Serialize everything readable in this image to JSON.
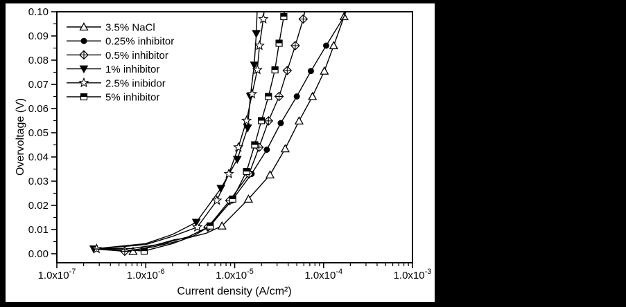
{
  "colors": {
    "page_background": "#000000",
    "plot_background": "#ffffff",
    "foreground": "#000000"
  },
  "chart_data": {
    "type": "line",
    "title": "",
    "xlabel": "Current density (A/cm²)",
    "ylabel": "Overvoltage (V)",
    "x_scale": "log",
    "x_range": [
      1e-07,
      0.001
    ],
    "y_range": [
      0.0,
      0.1
    ],
    "grid": false,
    "legend_position": "top-left",
    "x_tick_prefix": "1.0x10",
    "x_tick_exponents": [
      -7,
      -6,
      -5,
      -4,
      -3
    ],
    "y_tick_labels": [
      "0.00",
      "0.01",
      "0.02",
      "0.03",
      "0.04",
      "0.05",
      "0.06",
      "0.07",
      "0.08",
      "0.09",
      "0.10"
    ],
    "series": [
      {
        "name": "3.5% NaCl",
        "marker": "triangle-open",
        "line": [
          [
            2.6e-07,
            0.002
          ],
          [
            5e-07,
            0.0013
          ],
          [
            7.2e-07,
            0.001
          ],
          [
            1.4e-06,
            0.004
          ],
          [
            2.1e-06,
            0.0058
          ],
          [
            3e-06,
            0.0066
          ],
          [
            4.8e-06,
            0.0085
          ],
          [
            7.2e-06,
            0.0115
          ],
          [
            1.43e-05,
            0.0226
          ],
          [
            2.5e-05,
            0.0326
          ],
          [
            3.7e-05,
            0.0434
          ],
          [
            5.3e-05,
            0.0549
          ],
          [
            7.5e-05,
            0.065
          ],
          [
            0.000102,
            0.0755
          ],
          [
            0.00013,
            0.086
          ],
          [
            0.00017,
            0.098
          ],
          [
            0.000178,
            0.1
          ]
        ],
        "markers": [
          [
            7.2e-07,
            0.001
          ],
          [
            7.2e-06,
            0.0115
          ],
          [
            1.43e-05,
            0.0226
          ],
          [
            2.5e-05,
            0.0326
          ],
          [
            3.7e-05,
            0.0434
          ],
          [
            5.3e-05,
            0.0549
          ],
          [
            7.5e-05,
            0.065
          ],
          [
            0.000102,
            0.0755
          ],
          [
            0.00013,
            0.086
          ],
          [
            0.00017,
            0.098
          ]
        ]
      },
      {
        "name": "0.25% inhibitor",
        "marker": "circle-filled",
        "line": [
          [
            2.6e-07,
            0.002
          ],
          [
            7e-07,
            0.0022
          ],
          [
            1.5e-06,
            0.004
          ],
          [
            3e-06,
            0.007
          ],
          [
            5.05e-06,
            0.011
          ],
          [
            9.3e-06,
            0.022
          ],
          [
            1.55e-05,
            0.033
          ],
          [
            2.3e-05,
            0.043
          ],
          [
            3.3e-05,
            0.054
          ],
          [
            5e-05,
            0.065
          ],
          [
            7.2e-05,
            0.0755
          ],
          [
            0.000107,
            0.086
          ],
          [
            0.00017,
            0.098
          ],
          [
            0.000173,
            0.1
          ]
        ],
        "markers": [
          [
            5.05e-06,
            0.011
          ],
          [
            9.3e-06,
            0.022
          ],
          [
            1.55e-05,
            0.033
          ],
          [
            2.3e-05,
            0.043
          ],
          [
            3.3e-05,
            0.054
          ],
          [
            5e-05,
            0.065
          ],
          [
            7.2e-05,
            0.0755
          ],
          [
            0.000107,
            0.086
          ]
        ]
      },
      {
        "name": "0.5% inhibitor",
        "marker": "diamond-plus",
        "line": [
          [
            2.6e-07,
            0.002
          ],
          [
            4e-07,
            0.0015
          ],
          [
            5.8e-07,
            0.001
          ],
          [
            1.2e-06,
            0.0028
          ],
          [
            2.5e-06,
            0.0055
          ],
          [
            5e-06,
            0.011
          ],
          [
            8.8e-06,
            0.022
          ],
          [
            1.45e-05,
            0.033
          ],
          [
            1.88e-05,
            0.044
          ],
          [
            2.4e-05,
            0.0549
          ],
          [
            3.16e-05,
            0.065
          ],
          [
            3.9e-05,
            0.0757
          ],
          [
            4.8e-05,
            0.086
          ],
          [
            5.9e-05,
            0.097
          ],
          [
            6.15e-05,
            0.1
          ]
        ],
        "markers": [
          [
            5.8e-07,
            0.001
          ],
          [
            5e-06,
            0.011
          ],
          [
            8.8e-06,
            0.022
          ],
          [
            1.45e-05,
            0.033
          ],
          [
            1.88e-05,
            0.044
          ],
          [
            2.4e-05,
            0.0549
          ],
          [
            3.16e-05,
            0.065
          ],
          [
            3.9e-05,
            0.0757
          ],
          [
            4.8e-05,
            0.086
          ],
          [
            5.9e-05,
            0.097
          ]
        ]
      },
      {
        "name": "1% inhibitor",
        "marker": "triangle-down-filled",
        "line": [
          [
            2.6e-07,
            0.002
          ],
          [
            1e-06,
            0.0042
          ],
          [
            2e-06,
            0.008
          ],
          [
            3.7e-06,
            0.013
          ],
          [
            7e-06,
            0.027
          ],
          [
            1.07e-05,
            0.039
          ],
          [
            1.4e-05,
            0.052
          ],
          [
            1.5e-05,
            0.065
          ],
          [
            1.66e-05,
            0.078
          ],
          [
            1.75e-05,
            0.091
          ],
          [
            1.79e-05,
            0.1
          ]
        ],
        "markers": [
          [
            2.6e-07,
            0.002
          ],
          [
            3.7e-06,
            0.013
          ],
          [
            7e-06,
            0.027
          ],
          [
            1.07e-05,
            0.039
          ],
          [
            1.4e-05,
            0.052
          ],
          [
            1.5e-05,
            0.065
          ],
          [
            1.66e-05,
            0.078
          ],
          [
            1.75e-05,
            0.091
          ]
        ]
      },
      {
        "name": "2.5% inibidor",
        "marker": "star-open",
        "line": [
          [
            2.8e-07,
            0.002
          ],
          [
            1e-06,
            0.0038
          ],
          [
            2e-06,
            0.0072
          ],
          [
            3.8e-06,
            0.011
          ],
          [
            6.3e-06,
            0.022
          ],
          [
            8.6e-06,
            0.033
          ],
          [
            1.1e-05,
            0.044
          ],
          [
            1.36e-05,
            0.055
          ],
          [
            1.57e-05,
            0.066
          ],
          [
            1.8e-05,
            0.076
          ],
          [
            1.9e-05,
            0.086
          ],
          [
            2.1e-05,
            0.097
          ],
          [
            2.14e-05,
            0.1
          ]
        ],
        "markers": [
          [
            2.8e-07,
            0.002
          ],
          [
            3.8e-06,
            0.011
          ],
          [
            6.3e-06,
            0.022
          ],
          [
            8.6e-06,
            0.033
          ],
          [
            1.1e-05,
            0.044
          ],
          [
            1.36e-05,
            0.055
          ],
          [
            1.57e-05,
            0.066
          ],
          [
            1.8e-05,
            0.076
          ],
          [
            1.9e-05,
            0.086
          ],
          [
            2.1e-05,
            0.097
          ]
        ]
      },
      {
        "name": "5% inhibitor",
        "marker": "square-half",
        "line": [
          [
            2.6e-07,
            0.002
          ],
          [
            6e-07,
            0.0016
          ],
          [
            9.6e-07,
            0.0011
          ],
          [
            2e-06,
            0.0042
          ],
          [
            3.5e-06,
            0.0075
          ],
          [
            5.3e-06,
            0.0115
          ],
          [
            9.5e-06,
            0.0226
          ],
          [
            1.36e-05,
            0.034
          ],
          [
            1.68e-05,
            0.045
          ],
          [
            2e-05,
            0.055
          ],
          [
            2.4e-05,
            0.065
          ],
          [
            2.84e-05,
            0.076
          ],
          [
            3.16e-05,
            0.087
          ],
          [
            3.57e-05,
            0.098
          ],
          [
            3.63e-05,
            0.1
          ]
        ],
        "markers": [
          [
            9.6e-07,
            0.0011
          ],
          [
            5.3e-06,
            0.0115
          ],
          [
            9.5e-06,
            0.0226
          ],
          [
            1.36e-05,
            0.034
          ],
          [
            1.68e-05,
            0.045
          ],
          [
            2e-05,
            0.055
          ],
          [
            2.4e-05,
            0.065
          ],
          [
            2.84e-05,
            0.076
          ],
          [
            3.16e-05,
            0.087
          ],
          [
            3.57e-05,
            0.098
          ]
        ]
      }
    ]
  }
}
